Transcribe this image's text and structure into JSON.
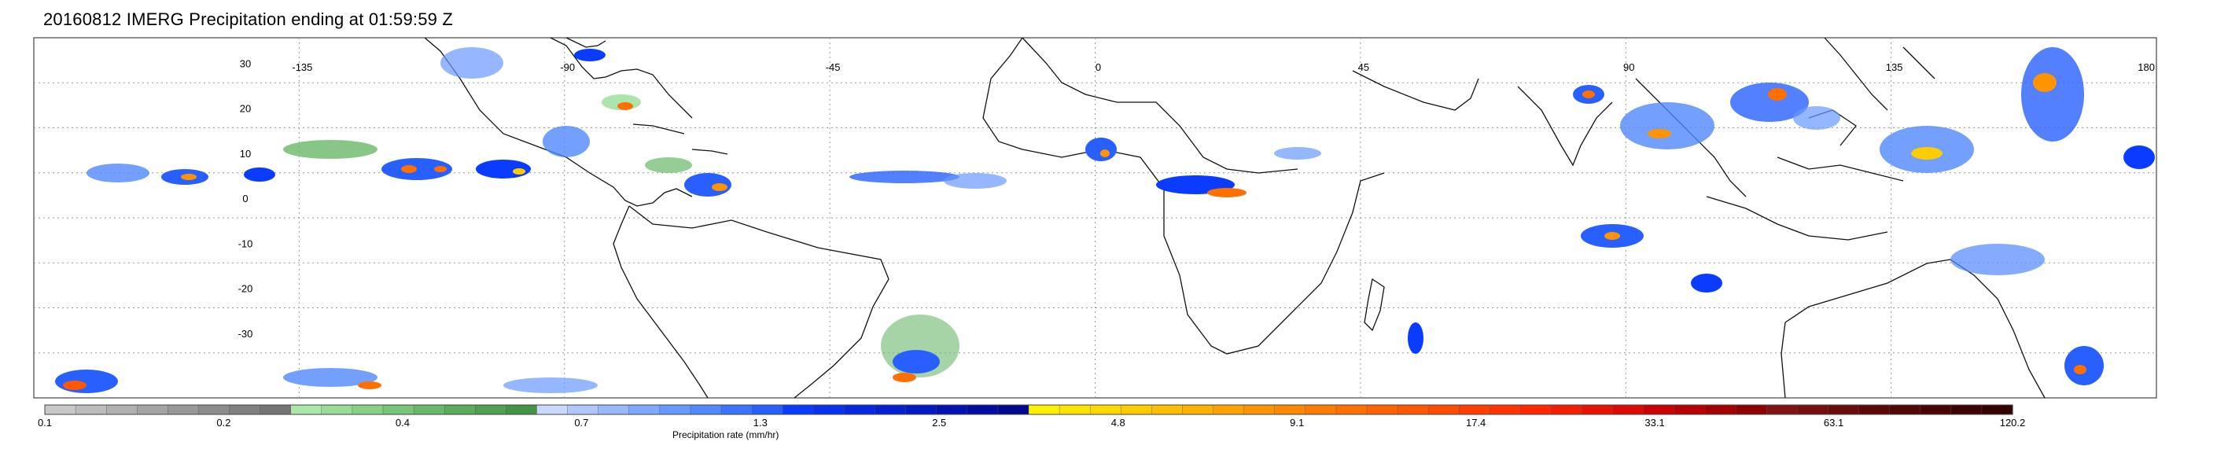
{
  "title": "20160812 IMERG Precipitation ending at 01:59:59 Z",
  "map": {
    "lon_range": [
      -180,
      180
    ],
    "lat_range": [
      -40,
      40
    ],
    "lon_ticks": [
      {
        "value": -135,
        "label": "-135"
      },
      {
        "value": -90,
        "label": "-90"
      },
      {
        "value": -45,
        "label": "-45"
      },
      {
        "value": 0,
        "label": "0"
      },
      {
        "value": 45,
        "label": "45"
      },
      {
        "value": 90,
        "label": "90"
      },
      {
        "value": 135,
        "label": "135"
      },
      {
        "value": 180,
        "label": "180"
      }
    ],
    "lat_ticks": [
      {
        "value": 30,
        "label": "30"
      },
      {
        "value": 20,
        "label": "20"
      },
      {
        "value": 10,
        "label": "10"
      },
      {
        "value": 0,
        "label": "0"
      },
      {
        "value": -10,
        "label": "-10"
      },
      {
        "value": -20,
        "label": "-20"
      },
      {
        "value": -30,
        "label": "-30"
      }
    ],
    "grid": "dotted"
  },
  "colorbar": {
    "title": "Precipitation rate (mm/hr)",
    "tick_labels": [
      "0.1",
      "0.2",
      "0.4",
      "0.7",
      "1.3",
      "2.5",
      "4.8",
      "9.1",
      "17.4",
      "33.1",
      "63.1",
      "120.2"
    ],
    "colors": [
      "#c8c8c8",
      "#bcbcbc",
      "#b0b0b0",
      "#a4a4a4",
      "#989898",
      "#8c8c8c",
      "#808080",
      "#747474",
      "#a8e8a8",
      "#98dc98",
      "#88d088",
      "#78c478",
      "#6ab86a",
      "#5cac5c",
      "#50a050",
      "#449444",
      "#c8d8ff",
      "#b0c8ff",
      "#98b8ff",
      "#80a8ff",
      "#6898ff",
      "#5088ff",
      "#3c74ff",
      "#2860ff",
      "#0a3cff",
      "#0832f0",
      "#0628e0",
      "#0420d0",
      "#0318c0",
      "#0212b0",
      "#010ca0",
      "#000890",
      "#fff000",
      "#ffe400",
      "#ffd800",
      "#ffcc00",
      "#ffbe00",
      "#ffb000",
      "#ffa200",
      "#ff9400",
      "#ff8800",
      "#ff7c00",
      "#ff7000",
      "#ff6400",
      "#ff5800",
      "#ff4c00",
      "#ff4000",
      "#ff3400",
      "#ff2800",
      "#f41e00",
      "#e81400",
      "#dc0a00",
      "#cc0000",
      "#b80000",
      "#a40000",
      "#900000",
      "#801414",
      "#741010",
      "#680c0c",
      "#5c0808",
      "#520606",
      "#480404",
      "#3e0202",
      "#340000"
    ]
  }
}
